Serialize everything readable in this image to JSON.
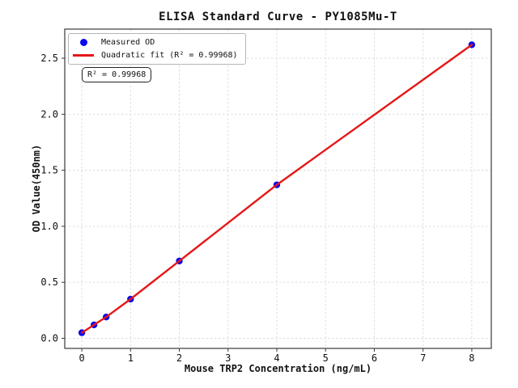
{
  "title": "ELISA Standard Curve - PY1085Mu-T",
  "axes": {
    "xlabel": "Mouse TRP2 Concentration (ng/mL)",
    "ylabel": "OD Value(450nm)",
    "x_tick_labels": [
      "0",
      "1",
      "2",
      "3",
      "4",
      "5",
      "6",
      "7",
      "8"
    ],
    "y_tick_labels": [
      "0.0",
      "0.5",
      "1.0",
      "1.5",
      "2.0",
      "2.5"
    ]
  },
  "legend": {
    "items": [
      {
        "marker": "dot",
        "color": "#0a0af0",
        "label": "Measured OD"
      },
      {
        "marker": "line",
        "color": "#e61717",
        "label": "Quadratic fit (R² = 0.99968)"
      }
    ]
  },
  "annotation": {
    "text": "R² = 0.99968"
  },
  "colors": {
    "points": "#0a0af0",
    "fit_line": "#e61717",
    "grid": "#d9d9d9",
    "spine": "#3a3a3a",
    "text": "#111111"
  },
  "chart_data": {
    "type": "scatter",
    "title": "ELISA Standard Curve - PY1085Mu-T",
    "xlabel": "Mouse TRP2 Concentration (ng/mL)",
    "ylabel": "OD Value(450nm)",
    "xlim": [
      -0.35,
      8.4
    ],
    "ylim": [
      -0.09,
      2.76
    ],
    "x_ticks": [
      0,
      1,
      2,
      3,
      4,
      5,
      6,
      7,
      8
    ],
    "y_ticks": [
      0.0,
      0.5,
      1.0,
      1.5,
      2.0,
      2.5
    ],
    "grid": true,
    "grid_style": "dashed",
    "legend_position": "upper left",
    "r_squared": 0.99968,
    "series": [
      {
        "name": "Measured OD",
        "type": "scatter",
        "color": "#0a0af0",
        "x": [
          0,
          0.25,
          0.5,
          1,
          2,
          4,
          8
        ],
        "y": [
          0.05,
          0.12,
          0.19,
          0.35,
          0.69,
          1.37,
          2.62
        ]
      },
      {
        "name": "Quadratic fit (R² = 0.99968)",
        "type": "line",
        "color": "#e61717",
        "x": [
          0,
          0.25,
          0.5,
          1,
          2,
          4,
          8
        ],
        "y": [
          0.05,
          0.12,
          0.19,
          0.35,
          0.69,
          1.37,
          2.62
        ]
      }
    ]
  }
}
